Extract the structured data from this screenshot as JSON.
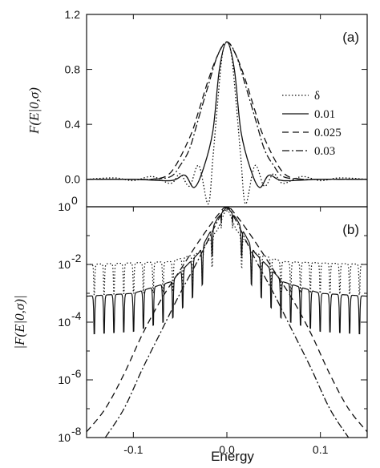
{
  "chart_data": [
    {
      "type": "line",
      "panel_label": "(a)",
      "ylabel": "F(E|0,σ)",
      "xlabel": "",
      "xlim": [
        -0.15,
        0.15
      ],
      "ylim": [
        -0.2,
        1.2
      ],
      "yticks": [
        0.0,
        0.4,
        0.8,
        1.2
      ],
      "ytick_labels": [
        "0.0",
        "0.4",
        "0.8",
        "1.2"
      ],
      "legend_position": "right",
      "legend": [
        {
          "label": "δ",
          "style": "dotted"
        },
        {
          "label": "0.01",
          "style": "solid"
        },
        {
          "label": "0.025",
          "style": "dashed"
        },
        {
          "label": "0.03",
          "style": "dashdot"
        }
      ],
      "series": [
        {
          "label": "δ",
          "style": "dotted",
          "x": [
            -0.15,
            -0.12,
            -0.1,
            -0.08,
            -0.06,
            -0.05,
            -0.04,
            -0.03,
            -0.02,
            -0.015,
            -0.01,
            -0.005,
            0.0,
            0.005,
            0.01,
            0.015,
            0.02,
            0.03,
            0.04,
            0.05,
            0.06,
            0.08,
            0.1,
            0.12,
            0.15
          ],
          "y": [
            0.0,
            0.01,
            -0.01,
            0.02,
            -0.03,
            0.04,
            -0.05,
            0.1,
            -0.18,
            0.15,
            0.55,
            0.9,
            1.0,
            0.9,
            0.55,
            0.15,
            -0.18,
            0.1,
            -0.05,
            0.04,
            -0.03,
            0.02,
            -0.01,
            0.01,
            0.0
          ]
        },
        {
          "label": "0.01",
          "style": "solid",
          "x": [
            -0.15,
            -0.1,
            -0.06,
            -0.045,
            -0.035,
            -0.025,
            -0.015,
            -0.008,
            0.0,
            0.008,
            0.015,
            0.025,
            0.035,
            0.045,
            0.06,
            0.1,
            0.15
          ],
          "y": [
            0.0,
            0.0,
            -0.01,
            0.03,
            -0.06,
            0.08,
            0.35,
            0.8,
            1.0,
            0.8,
            0.35,
            0.08,
            -0.06,
            0.03,
            -0.01,
            0.0,
            0.0
          ]
        },
        {
          "label": "0.025",
          "style": "dashed",
          "x": [
            -0.15,
            -0.1,
            -0.08,
            -0.06,
            -0.04,
            -0.03,
            -0.02,
            -0.01,
            0.0,
            0.01,
            0.02,
            0.03,
            0.04,
            0.06,
            0.08,
            0.1,
            0.15
          ],
          "y": [
            0.0,
            0.0,
            0.0,
            0.05,
            0.3,
            0.5,
            0.72,
            0.9,
            1.0,
            0.9,
            0.72,
            0.5,
            0.3,
            0.05,
            0.0,
            0.0,
            0.0
          ]
        },
        {
          "label": "0.03",
          "style": "dashdot",
          "x": [
            -0.15,
            -0.1,
            -0.08,
            -0.06,
            -0.05,
            -0.04,
            -0.03,
            -0.02,
            -0.01,
            0.0,
            0.01,
            0.02,
            0.03,
            0.04,
            0.05,
            0.06,
            0.08,
            0.1,
            0.15
          ],
          "y": [
            0.0,
            0.0,
            0.0,
            0.02,
            0.1,
            0.22,
            0.45,
            0.68,
            0.9,
            1.0,
            0.9,
            0.68,
            0.45,
            0.22,
            0.1,
            0.02,
            0.0,
            0.0,
            0.0
          ]
        }
      ]
    },
    {
      "type": "line",
      "panel_label": "(b)",
      "ylabel": "|F(E|0,σ)|",
      "xlabel": "Energy",
      "xlim": [
        -0.15,
        0.15
      ],
      "yscale": "log",
      "ylim": [
        1e-08,
        1
      ],
      "yticks": [
        1e-08,
        1e-06,
        0.0001,
        0.01,
        1
      ],
      "ytick_labels": [
        {
          "base": "10",
          "exp": "-8"
        },
        {
          "base": "10",
          "exp": "-6"
        },
        {
          "base": "10",
          "exp": "-4"
        },
        {
          "base": "10",
          "exp": "0"
        }
      ],
      "ytick_labels_full": [
        {
          "base": "10",
          "exp": "-8"
        },
        {
          "base": "10",
          "exp": "-6"
        },
        {
          "base": "10",
          "exp": "-4"
        },
        {
          "base": "10",
          "exp": "-2"
        },
        {
          "base": "10",
          "exp": "0"
        }
      ],
      "xticks": [
        -0.1,
        0.0,
        0.1
      ],
      "xtick_labels": [
        "-0.1",
        "0.0",
        "0.1"
      ],
      "series": [
        {
          "label": "δ",
          "style": "dotted",
          "envelope_log10": {
            "x": [
              -0.15,
              -0.06,
              -0.03,
              -0.01,
              0.0,
              0.01,
              0.03,
              0.06,
              0.15
            ],
            "y": [
              -2.0,
              -1.9,
              -1.6,
              -0.8,
              0.0,
              -0.8,
              -1.6,
              -1.9,
              -2.0
            ]
          },
          "dip_spacing": 0.0105,
          "dip_depth_log10": 1.2
        },
        {
          "label": "0.01",
          "style": "solid",
          "envelope_log10": {
            "x": [
              -0.15,
              -0.1,
              -0.06,
              -0.03,
              -0.01,
              0.0,
              0.01,
              0.03,
              0.06,
              0.1,
              0.15
            ],
            "y": [
              -3.1,
              -3.0,
              -2.6,
              -1.6,
              -0.4,
              0.0,
              -0.4,
              -1.6,
              -2.6,
              -3.0,
              -3.1
            ]
          },
          "dip_spacing": 0.0105,
          "dip_depth_log10": 1.5
        },
        {
          "label": "0.025",
          "style": "dashed",
          "x": [
            -0.15,
            -0.13,
            -0.11,
            -0.09,
            -0.07,
            -0.05,
            -0.03,
            -0.01,
            0.0,
            0.01,
            0.03,
            0.05,
            0.07,
            0.09,
            0.11,
            0.13,
            0.15
          ],
          "y_log10": [
            -7.8,
            -7.0,
            -5.8,
            -4.4,
            -3.2,
            -2.2,
            -1.2,
            -0.3,
            0.0,
            -0.3,
            -1.2,
            -2.2,
            -3.2,
            -4.4,
            -5.8,
            -7.0,
            -7.8
          ]
        },
        {
          "label": "0.03",
          "style": "dashdot",
          "x": [
            -0.13,
            -0.11,
            -0.09,
            -0.07,
            -0.05,
            -0.03,
            -0.01,
            0.0,
            0.01,
            0.03,
            0.05,
            0.07,
            0.09,
            0.11,
            0.13
          ],
          "y_log10": [
            -8.0,
            -7.0,
            -5.6,
            -4.3,
            -3.0,
            -1.8,
            -0.5,
            0.0,
            -0.5,
            -1.8,
            -3.0,
            -4.3,
            -5.6,
            -7.0,
            -8.0
          ]
        }
      ]
    }
  ]
}
